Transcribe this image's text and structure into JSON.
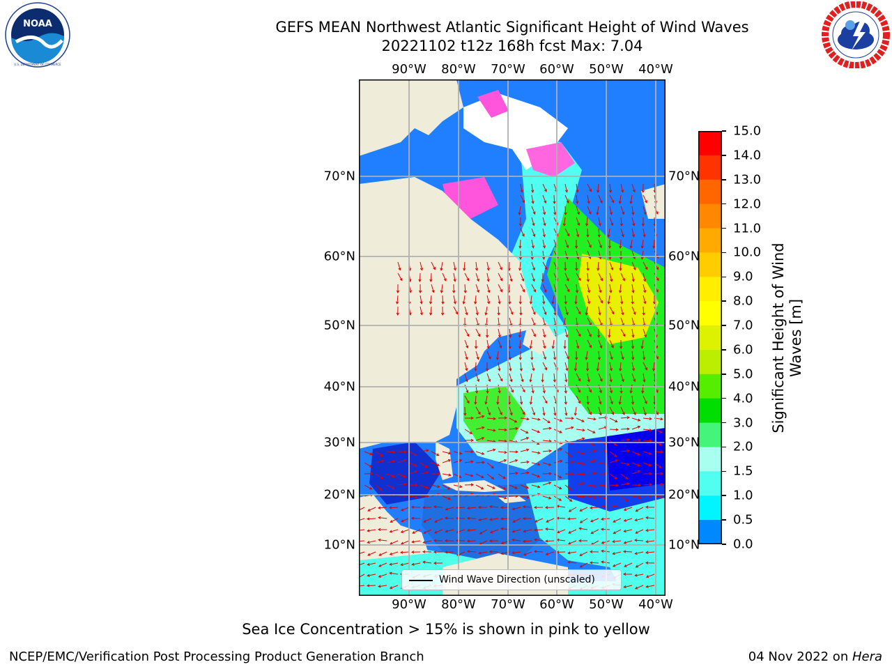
{
  "header": {
    "title_line1": "GEFS MEAN Northwest Atlantic Significant Height of Wind Waves",
    "title_line2": "20221102 t12z 168h fcst   Max: 7.04"
  },
  "logos": {
    "left": {
      "name": "noaa-logo",
      "text": "NOAA",
      "ring_text": "NATIONAL OCEANIC AND ATMOSPHERIC ADMINISTRATION · U.S. DEPARTMENT OF COMMERCE",
      "colors": {
        "outer": "#ffffff",
        "ring": "#1b3f8b",
        "sea": "#1a8ad4",
        "sky": "#0b2c6e"
      }
    },
    "right": {
      "name": "nws-logo",
      "ring_text": "NATIONAL WEATHER SERVICE",
      "colors": {
        "ring": "#e02020",
        "cloud": "#1a3fa0",
        "bolt": "#ffffff"
      }
    }
  },
  "map": {
    "lon_labels": [
      "90°W",
      "80°W",
      "70°W",
      "60°W",
      "50°W",
      "40°W"
    ],
    "lat_labels": [
      "70°N",
      "60°N",
      "50°N",
      "40°N",
      "30°N",
      "20°N",
      "10°N"
    ],
    "colors": {
      "land": "#efecda",
      "ice_white": "#ffffff",
      "arrows": "#e00000",
      "grid": "#b0b0b0",
      "border": "#000000"
    },
    "legend_label": "Wind Wave Direction (unscaled)",
    "max_value": 7.04
  },
  "colorbar": {
    "labels": [
      "15.0",
      "14.0",
      "13.0",
      "12.0",
      "11.0",
      "10.0",
      "9.0",
      "8.0",
      "7.0",
      "6.0",
      "5.0",
      "4.0",
      "3.0",
      "2.0",
      "1.5",
      "1.0",
      "0.5",
      "0.0"
    ],
    "colors": [
      "#ff0000",
      "#ff3300",
      "#ff6600",
      "#ff8800",
      "#ffaa00",
      "#ffcc00",
      "#ffee00",
      "#ffff00",
      "#ddf200",
      "#bbee00",
      "#55ee00",
      "#00dd00",
      "#44f57a",
      "#a8fff0",
      "#50fff0",
      "#00f5ff",
      "#0088ff",
      "#0000ff"
    ],
    "title": "Significant Height of Wind Waves [m]"
  },
  "footer": {
    "note": "Sea Ice Concentration > 15% is shown in pink to yellow",
    "left": "NCEP/EMC/Verification Post Processing Product Generation Branch",
    "right_date": "04 Nov 2022 on ",
    "right_host": "Hera"
  }
}
